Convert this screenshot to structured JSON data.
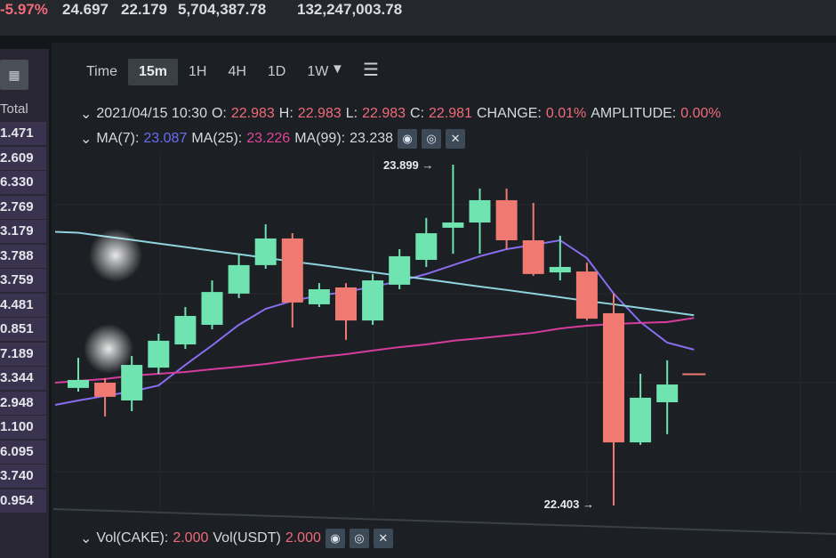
{
  "ticker": {
    "change_pct": "-5.97%",
    "high_24h": "24.697",
    "low_24h": "22.179",
    "volume_cake": "5,704,387.78",
    "volume_usdt": "132,247,003.78"
  },
  "sidebar": {
    "button_icon": "calculator-icon",
    "header": "Total",
    "values": [
      "1.471",
      "2.609",
      "6.330",
      "2.769",
      "3.179",
      "3.788",
      "3.759",
      "4.481",
      "0.851",
      "7.189",
      "3.344",
      "2.948",
      "1.100",
      "6.095",
      "3.740",
      "0.954"
    ]
  },
  "toolbar": {
    "tabs": [
      "Time",
      "15m",
      "1H",
      "4H",
      "1D",
      "1W"
    ],
    "active": "15m",
    "dropdown_icon": "caret-down-icon",
    "settings_icon": "sliders-icon"
  },
  "ohlc_line": {
    "datetime": "2021/04/15 10:30",
    "o_label": "O:",
    "o": "22.983",
    "h_label": "H:",
    "h": "22.983",
    "l_label": "L:",
    "l": "22.983",
    "c_label": "C:",
    "c": "22.981",
    "change_label": "CHANGE:",
    "change": "0.01%",
    "amplitude_label": "AMPLITUDE:",
    "amplitude": "0.00%"
  },
  "ma_line": {
    "ma7_label": "MA(7):",
    "ma7": "23.087",
    "ma25_label": "MA(25):",
    "ma25": "23.226",
    "ma99_label": "MA(99):",
    "ma99": "23.238"
  },
  "vol_line": {
    "vol_cake_label": "Vol(CAKE):",
    "vol_cake": "2.000",
    "vol_usdt_label": "Vol(USDT)",
    "vol_usdt": "2.000"
  },
  "colors": {
    "up": "#6fe3b0",
    "down": "#f07a72",
    "ma7": "#8a6cf0",
    "ma25": "#d63c9c",
    "ma99": "#8fd3dc"
  },
  "chart_data": {
    "type": "candlestick",
    "interval": "15m",
    "annotations": [
      {
        "label": "23.899",
        "value": 23.899,
        "kind": "high"
      },
      {
        "label": "22.403",
        "value": 22.403,
        "kind": "low"
      }
    ],
    "ylim": [
      22.4,
      23.9
    ],
    "candles": [
      {
        "o": 22.919,
        "h": 23.051,
        "l": 22.903,
        "c": 22.954
      },
      {
        "o": 22.942,
        "h": 22.962,
        "l": 22.794,
        "c": 22.88
      },
      {
        "o": 22.864,
        "h": 23.059,
        "l": 22.817,
        "c": 23.02
      },
      {
        "o": 23.008,
        "h": 23.157,
        "l": 22.981,
        "c": 23.126
      },
      {
        "o": 23.11,
        "h": 23.274,
        "l": 23.09,
        "c": 23.235
      },
      {
        "o": 23.196,
        "h": 23.391,
        "l": 23.176,
        "c": 23.34
      },
      {
        "o": 23.333,
        "h": 23.508,
        "l": 23.313,
        "c": 23.458
      },
      {
        "o": 23.458,
        "h": 23.637,
        "l": 23.442,
        "c": 23.575
      },
      {
        "o": 23.575,
        "h": 23.598,
        "l": 23.184,
        "c": 23.294
      },
      {
        "o": 23.286,
        "h": 23.379,
        "l": 23.274,
        "c": 23.352
      },
      {
        "o": 23.36,
        "h": 23.379,
        "l": 23.13,
        "c": 23.215
      },
      {
        "o": 23.215,
        "h": 23.419,
        "l": 23.196,
        "c": 23.391
      },
      {
        "o": 23.372,
        "h": 23.528,
        "l": 23.352,
        "c": 23.497
      },
      {
        "o": 23.481,
        "h": 23.665,
        "l": 23.45,
        "c": 23.598
      },
      {
        "o": 23.622,
        "h": 23.899,
        "l": 23.508,
        "c": 23.645
      },
      {
        "o": 23.645,
        "h": 23.794,
        "l": 23.508,
        "c": 23.743
      },
      {
        "o": 23.743,
        "h": 23.794,
        "l": 23.528,
        "c": 23.567
      },
      {
        "o": 23.567,
        "h": 23.731,
        "l": 23.411,
        "c": 23.419
      },
      {
        "o": 23.426,
        "h": 23.587,
        "l": 23.391,
        "c": 23.45
      },
      {
        "o": 23.43,
        "h": 23.469,
        "l": 23.215,
        "c": 23.223
      },
      {
        "o": 23.247,
        "h": 23.333,
        "l": 22.403,
        "c": 22.68
      },
      {
        "o": 22.68,
        "h": 22.981,
        "l": 22.669,
        "c": 22.876
      },
      {
        "o": 22.856,
        "h": 23.04,
        "l": 22.716,
        "c": 22.934
      },
      {
        "o": 22.983,
        "h": 22.983,
        "l": 22.983,
        "c": 22.981
      }
    ],
    "series": [
      {
        "name": "MA(7)",
        "values": [
          22.864,
          22.884,
          22.903,
          22.93,
          23.02,
          23.106,
          23.196,
          23.266,
          23.301,
          23.325,
          23.34,
          23.364,
          23.387,
          23.419,
          23.458,
          23.497,
          23.528,
          23.547,
          23.567,
          23.489,
          23.333,
          23.208,
          23.118,
          23.087
        ]
      },
      {
        "name": "MA(25)",
        "values": [
          22.95,
          22.958,
          22.973,
          22.981,
          22.989,
          23.001,
          23.012,
          23.024,
          23.04,
          23.055,
          23.067,
          23.083,
          23.098,
          23.11,
          23.126,
          23.137,
          23.149,
          23.161,
          23.18,
          23.192,
          23.2,
          23.204,
          23.208,
          23.226
        ]
      },
      {
        "name": "MA(99)",
        "values": [
          23.6,
          23.584,
          23.569,
          23.553,
          23.537,
          23.521,
          23.506,
          23.49,
          23.474,
          23.459,
          23.443,
          23.427,
          23.411,
          23.396,
          23.38,
          23.364,
          23.349,
          23.333,
          23.317,
          23.301,
          23.286,
          23.27,
          23.254,
          23.238
        ]
      }
    ]
  }
}
